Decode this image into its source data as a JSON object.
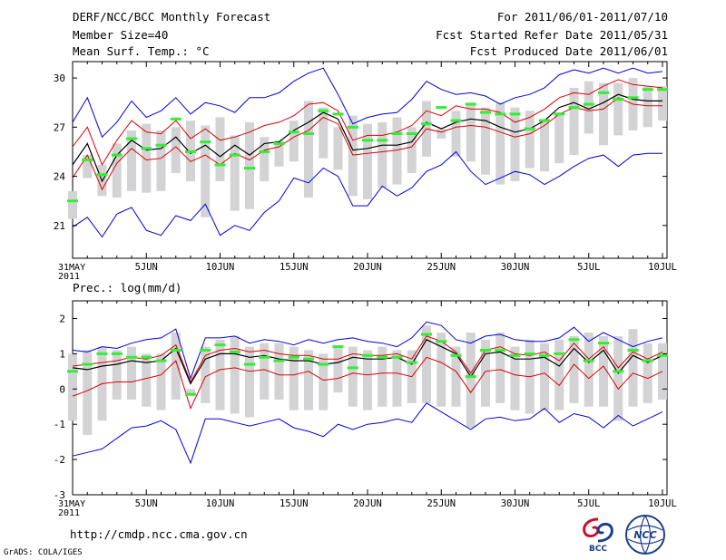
{
  "header": {
    "title": "DERF/NCC/BCC Monthly Forecast",
    "member_size": "Member Size=40",
    "variable": "Mean Surf. Temp.: °C",
    "period": "For 2011/06/01-2011/07/10",
    "start_date": "Fcst Started Refer Date 2011/05/31",
    "produced_date": "Fcst Produced Date 2011/06/01"
  },
  "footer": {
    "url": "http://cmdp.ncc.cma.gov.cn",
    "credit": "GrADS: COLA/IGES",
    "logo_bcc": "BCC",
    "logo_ncc": "NCC"
  },
  "colors": {
    "envelope": "#0000dd",
    "spread": "#dd0000",
    "mean": "#000000",
    "box": "#d3d3d6",
    "median": "#33ee33"
  },
  "chart_data": [
    {
      "type": "box-ensemble",
      "title": "Mean Surf. Temp.: °C",
      "x_labels": [
        "31MAY\n2011",
        "5JUN",
        "10JUN",
        "15JUN",
        "20JUN",
        "25JUN",
        "30JUN",
        "5JUL",
        "10JUL"
      ],
      "days": 41,
      "ylim": [
        19,
        31
      ],
      "yticks": [
        21,
        24,
        27,
        30
      ],
      "series": {
        "envelope_max": [
          27.3,
          28.8,
          26.4,
          27.3,
          28.6,
          27.6,
          28.0,
          28.8,
          27.8,
          28.5,
          28.3,
          27.9,
          28.8,
          28.8,
          29.1,
          29.8,
          30.3,
          30.6,
          29.0,
          27.2,
          27.6,
          27.8,
          27.9,
          28.7,
          29.8,
          29.3,
          29.0,
          29.1,
          28.9,
          28.4,
          28.8,
          29.0,
          29.4,
          30.2,
          30.5,
          30.3,
          30.6,
          30.3,
          30.6,
          30.3,
          30.4
        ],
        "spread_max": [
          25.8,
          27.0,
          24.7,
          26.2,
          27.4,
          26.7,
          26.6,
          27.4,
          26.3,
          26.9,
          26.2,
          26.4,
          26.7,
          27.1,
          27.3,
          27.7,
          28.4,
          28.5,
          28.0,
          26.2,
          26.5,
          26.5,
          26.7,
          27.1,
          28.0,
          27.7,
          28.3,
          28.1,
          28.1,
          27.9,
          27.3,
          27.6,
          28.1,
          28.8,
          29.1,
          29.0,
          29.5,
          29.9,
          29.6,
          29.5,
          29.4
        ],
        "ens_mean": [
          24.7,
          26.0,
          23.7,
          25.3,
          26.2,
          25.6,
          25.7,
          26.4,
          25.4,
          25.9,
          25.2,
          25.9,
          25.3,
          26.0,
          26.1,
          26.8,
          27.3,
          27.9,
          27.5,
          25.6,
          25.7,
          25.9,
          25.9,
          26.1,
          27.3,
          26.9,
          27.3,
          27.5,
          27.4,
          27.0,
          26.7,
          26.9,
          27.4,
          28.2,
          28.5,
          28.1,
          28.5,
          29.0,
          28.7,
          28.6,
          28.6
        ],
        "spread_min": [
          23.9,
          25.3,
          23.2,
          24.8,
          25.7,
          25.0,
          25.1,
          25.8,
          24.9,
          25.3,
          24.7,
          25.4,
          25.0,
          25.6,
          25.8,
          26.4,
          26.8,
          27.6,
          27.2,
          25.3,
          25.4,
          25.5,
          25.6,
          25.8,
          26.9,
          26.7,
          27.0,
          27.1,
          27.0,
          26.7,
          26.4,
          26.6,
          27.1,
          27.8,
          28.2,
          28.0,
          28.1,
          28.8,
          28.4,
          28.3,
          28.3
        ],
        "envelope_min": [
          20.9,
          21.5,
          20.3,
          21.7,
          22.1,
          20.7,
          20.4,
          21.6,
          21.3,
          22.3,
          20.4,
          21.0,
          20.7,
          21.8,
          22.5,
          23.9,
          23.6,
          24.5,
          24.0,
          22.2,
          22.2,
          23.4,
          22.8,
          23.3,
          24.3,
          24.7,
          25.5,
          24.3,
          23.5,
          23.9,
          24.3,
          24.1,
          23.5,
          24.0,
          24.6,
          25.1,
          25.3,
          24.6,
          25.3,
          25.4,
          25.4
        ],
        "box_max": [
          23.1,
          25.3,
          24.7,
          26.0,
          26.8,
          27.2,
          26.8,
          27.0,
          27.4,
          27.1,
          27.6,
          26.5,
          27.3,
          26.4,
          26.2,
          27.4,
          28.6,
          28.2,
          27.0,
          27.7,
          27.2,
          27.3,
          27.6,
          27.0,
          28.6,
          26.9,
          28.0,
          28.5,
          28.2,
          28.5,
          28.2,
          28.0,
          27.5,
          27.9,
          29.4,
          29.8,
          29.7,
          29.7,
          30.0,
          29.5,
          29.5
        ],
        "box_min": [
          21.4,
          23.9,
          22.8,
          22.7,
          23.1,
          23.0,
          23.1,
          24.2,
          23.7,
          21.5,
          23.7,
          21.9,
          22.0,
          23.7,
          24.6,
          24.9,
          22.7,
          25.1,
          24.4,
          22.8,
          22.6,
          23.3,
          23.5,
          24.2,
          25.2,
          26.3,
          25.2,
          24.9,
          24.1,
          23.5,
          23.7,
          24.5,
          24.3,
          24.8,
          25.3,
          26.6,
          25.9,
          26.5,
          26.8,
          27.0,
          27.4
        ],
        "median": [
          22.5,
          25.0,
          24.1,
          25.3,
          26.3,
          25.7,
          25.9,
          27.5,
          25.5,
          26.1,
          24.7,
          25.3,
          24.5,
          25.5,
          26.0,
          26.7,
          26.6,
          28.0,
          27.8,
          27.0,
          26.2,
          26.2,
          26.6,
          26.6,
          27.2,
          28.2,
          27.4,
          28.4,
          27.9,
          27.8,
          27.8,
          26.9,
          27.4,
          27.8,
          28.2,
          28.4,
          29.1,
          28.7,
          28.8,
          29.3,
          29.3
        ]
      }
    },
    {
      "type": "box-ensemble",
      "title": "Prec.: log(mm/d)",
      "x_labels": [
        "31MAY\n2011",
        "5JUN",
        "10JUN",
        "15JUN",
        "20JUN",
        "25JUN",
        "30JUN",
        "5JUL",
        "10JUL"
      ],
      "days": 41,
      "ylim": [
        -3,
        2.5
      ],
      "yticks": [
        -3,
        -2,
        -1,
        0,
        1,
        2
      ],
      "series": {
        "envelope_max": [
          1.1,
          1.05,
          1.2,
          1.15,
          1.3,
          1.4,
          1.45,
          1.7,
          0.3,
          1.45,
          1.45,
          1.5,
          1.3,
          1.4,
          1.35,
          1.25,
          1.4,
          1.3,
          1.4,
          1.45,
          1.35,
          1.3,
          1.2,
          1.45,
          1.9,
          1.8,
          1.4,
          1.3,
          1.5,
          1.55,
          1.4,
          1.35,
          1.35,
          1.45,
          1.75,
          1.35,
          1.6,
          1.4,
          1.2,
          1.35,
          1.45
        ],
        "spread_max": [
          0.65,
          0.7,
          0.75,
          0.8,
          0.9,
          0.85,
          0.95,
          1.25,
          0.2,
          0.95,
          1.1,
          1.15,
          1.05,
          1.1,
          1.0,
          0.95,
          0.95,
          0.85,
          0.85,
          1.0,
          0.95,
          0.95,
          1.0,
          0.85,
          1.5,
          1.35,
          1.05,
          0.45,
          1.1,
          1.2,
          1.0,
          0.95,
          1.05,
          0.8,
          1.3,
          0.85,
          1.2,
          0.6,
          1.05,
          0.85,
          1.05
        ],
        "ens_mean": [
          0.6,
          0.55,
          0.65,
          0.7,
          0.8,
          0.75,
          0.8,
          1.15,
          0.15,
          0.85,
          1.0,
          1.0,
          0.9,
          0.95,
          0.85,
          0.8,
          0.8,
          0.7,
          0.75,
          0.9,
          0.85,
          0.85,
          0.9,
          0.7,
          1.4,
          1.2,
          1.0,
          0.35,
          1.0,
          1.05,
          0.85,
          0.85,
          0.9,
          0.65,
          1.15,
          0.75,
          1.1,
          0.45,
          0.95,
          0.75,
          0.95
        ],
        "spread_min": [
          -0.2,
          -0.05,
          0.15,
          0.2,
          0.2,
          0.3,
          0.4,
          0.8,
          -0.55,
          0.35,
          0.55,
          0.6,
          0.5,
          0.55,
          0.4,
          0.4,
          0.5,
          0.25,
          0.3,
          0.45,
          0.4,
          0.45,
          0.45,
          0.35,
          0.9,
          0.75,
          0.5,
          -0.1,
          0.5,
          0.55,
          0.4,
          0.35,
          0.45,
          0.1,
          0.7,
          0.3,
          0.65,
          0.0,
          0.45,
          0.3,
          0.5
        ],
        "envelope_min": [
          -1.9,
          -1.8,
          -1.7,
          -1.4,
          -1.1,
          -1.05,
          -0.9,
          -1.15,
          -2.1,
          -0.85,
          -0.85,
          -0.95,
          -1.05,
          -0.95,
          -0.85,
          -1.1,
          -1.2,
          -1.35,
          -1.0,
          -1.15,
          -1.0,
          -0.95,
          -0.85,
          -0.95,
          -0.4,
          -0.65,
          -0.9,
          -1.15,
          -0.85,
          -0.8,
          -0.9,
          -0.85,
          -0.55,
          -0.95,
          -0.7,
          -0.8,
          -1.1,
          -0.75,
          -1.05,
          -0.85,
          -0.65
        ],
        "box_max": [
          1.0,
          1.1,
          1.2,
          1.1,
          1.2,
          1.0,
          1.0,
          1.6,
          0.0,
          1.2,
          1.4,
          1.5,
          1.2,
          1.3,
          1.3,
          1.2,
          1.1,
          1.0,
          1.2,
          1.2,
          1.1,
          1.2,
          1.1,
          1.1,
          1.8,
          1.6,
          1.2,
          1.6,
          1.4,
          1.6,
          1.2,
          1.4,
          1.3,
          1.4,
          1.5,
          1.6,
          1.5,
          1.5,
          1.7,
          1.3,
          1.3
        ],
        "box_min": [
          -0.9,
          -1.3,
          -0.9,
          -0.3,
          -0.3,
          -0.5,
          -0.6,
          -0.3,
          -0.2,
          -0.4,
          -0.6,
          -0.7,
          -0.8,
          -0.3,
          -0.3,
          -0.6,
          -0.6,
          -0.6,
          -0.1,
          -0.5,
          -0.6,
          -0.5,
          -0.5,
          -0.4,
          -0.4,
          -0.5,
          -0.5,
          -1.1,
          -0.5,
          -0.4,
          -0.6,
          -0.7,
          -0.6,
          -0.6,
          -0.4,
          -0.5,
          -0.5,
          -0.9,
          -0.5,
          -0.4,
          -0.3
        ],
        "median": [
          0.5,
          0.7,
          1.0,
          1.0,
          0.9,
          0.9,
          0.8,
          1.1,
          -0.15,
          1.1,
          1.25,
          1.05,
          0.7,
          0.9,
          0.8,
          0.9,
          0.85,
          0.7,
          1.2,
          0.6,
          0.95,
          0.9,
          0.9,
          0.75,
          1.55,
          1.35,
          0.95,
          0.35,
          1.1,
          1.1,
          0.95,
          1.0,
          0.95,
          1.0,
          1.4,
          0.8,
          1.3,
          0.5,
          1.1,
          0.8,
          0.95
        ]
      }
    }
  ]
}
